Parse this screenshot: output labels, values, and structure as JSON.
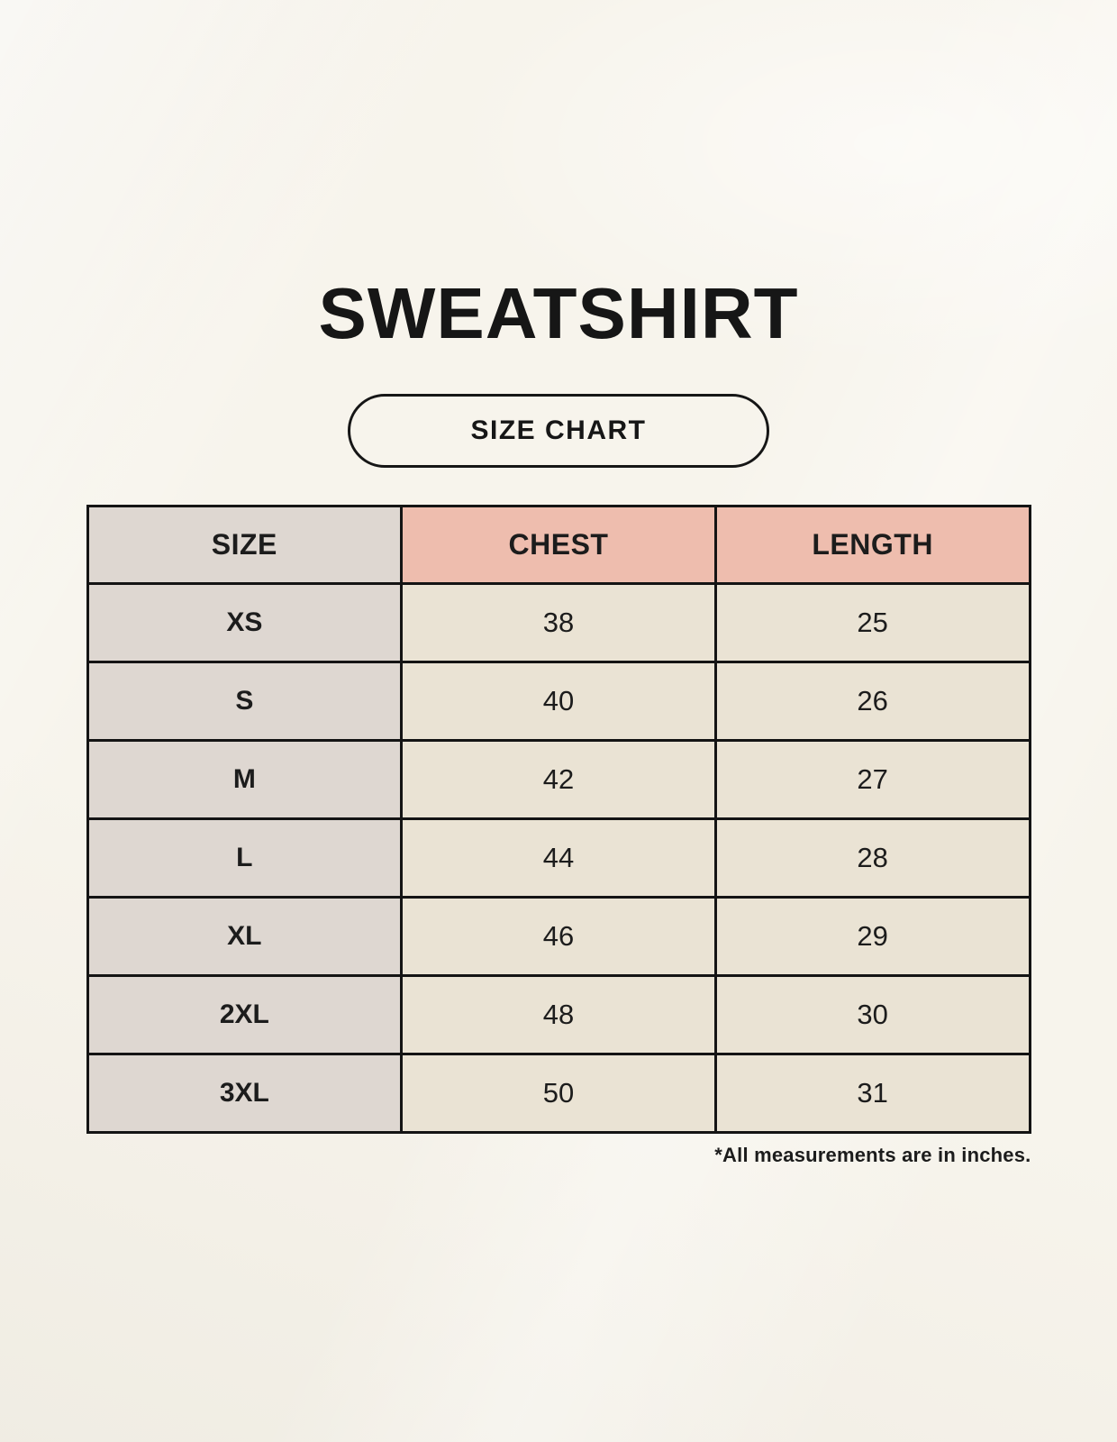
{
  "page": {
    "title": "SWEATSHIRT",
    "badge_label": "SIZE CHART",
    "footnote": "*All measurements are in inches."
  },
  "colors": {
    "background": "#F7F4EC",
    "size_column_bg": "#DED7D1",
    "header_accent_pink": "#EEBDAE",
    "value_cell_cream": "#EAE3D4",
    "border": "#141414",
    "text": "#1C1C1C"
  },
  "chart_data": {
    "type": "table",
    "title": "SWEATSHIRT",
    "subtitle": "SIZE CHART",
    "columns": [
      "SIZE",
      "CHEST",
      "LENGTH"
    ],
    "rows": [
      [
        "XS",
        "38",
        "25"
      ],
      [
        "S",
        "40",
        "26"
      ],
      [
        "M",
        "42",
        "27"
      ],
      [
        "L",
        "44",
        "28"
      ],
      [
        "XL",
        "46",
        "29"
      ],
      [
        "2XL",
        "48",
        "30"
      ],
      [
        "3XL",
        "50",
        "31"
      ]
    ],
    "units": "inches",
    "footnote": "*All measurements are in inches."
  }
}
